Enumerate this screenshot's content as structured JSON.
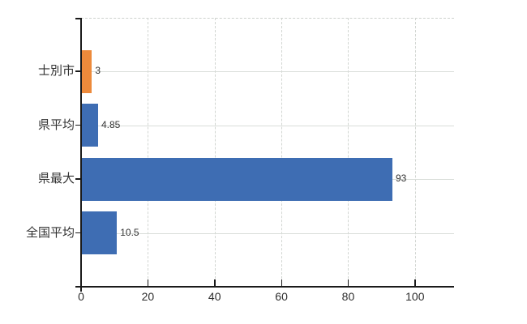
{
  "chart_data": {
    "type": "bar",
    "orientation": "horizontal",
    "title": "",
    "xlabel": "",
    "ylabel": "",
    "categories": [
      "士別市",
      "県平均",
      "県最大",
      "全国平均"
    ],
    "values": [
      3,
      4.85,
      93,
      10.5
    ],
    "value_labels": [
      "3",
      "4.85",
      "93",
      "10.5"
    ],
    "bar_colors": [
      "#ED8A3B",
      "#3E6DB3",
      "#3E6DB3",
      "#3E6DB3"
    ],
    "x_ticks": [
      0,
      20,
      40,
      60,
      80,
      100
    ],
    "x_tick_labels": [
      "0",
      "20",
      "40",
      "60",
      "80",
      "100"
    ],
    "xlim": [
      0,
      111.7
    ],
    "legend": "none",
    "grid": {
      "vertical": "dashed-light-gray",
      "horizontal": "solid-light-gray"
    },
    "colors": {
      "background": "#ffffff",
      "axis": "#1a1a1a",
      "gridline_horizontal": "#d9ddd9",
      "gridline_vertical": "#d2d6d2",
      "label_text": "#333333"
    }
  }
}
